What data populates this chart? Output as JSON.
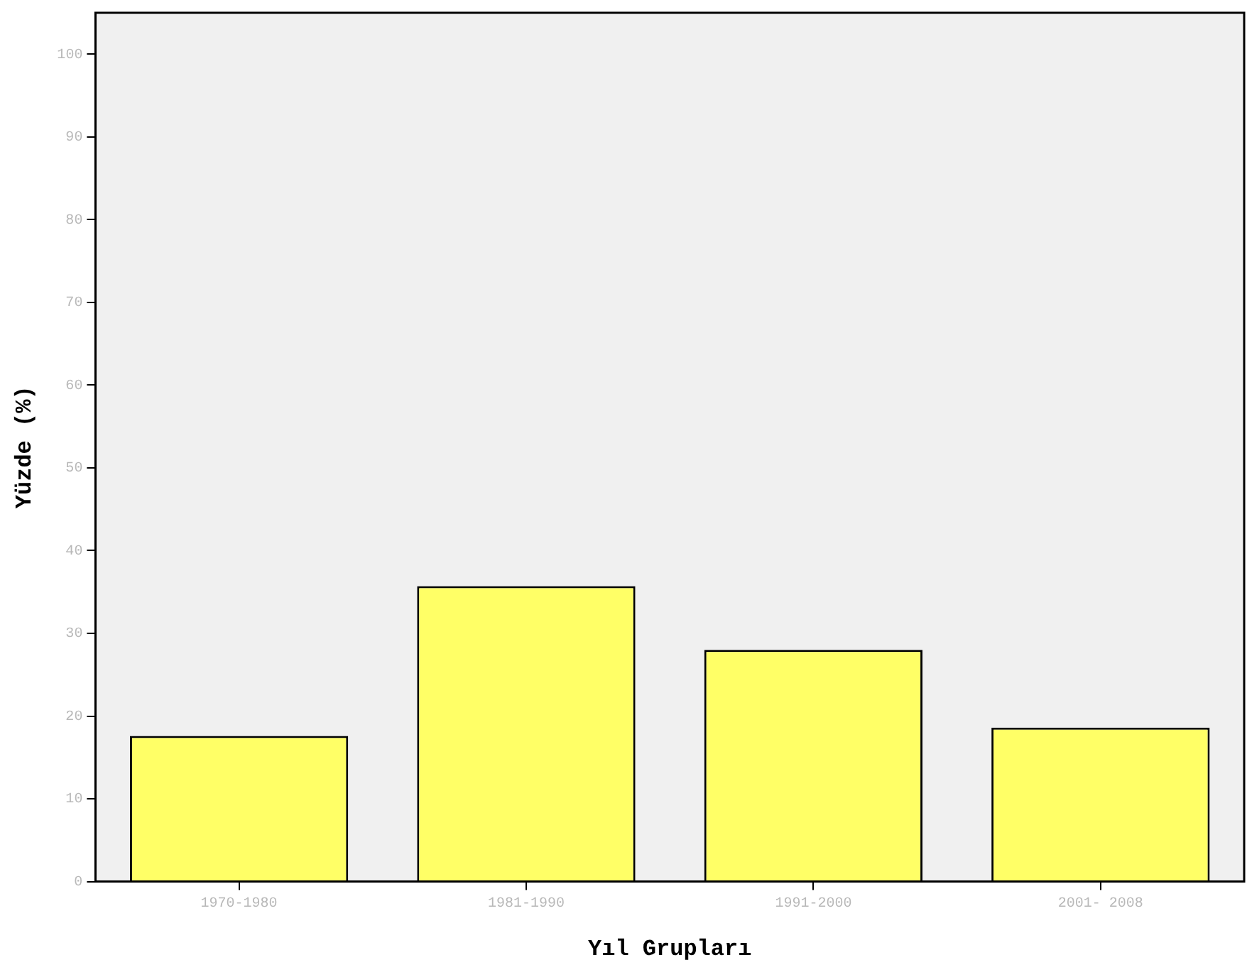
{
  "chart_data": {
    "type": "bar",
    "xlabel": "Yıl Grupları",
    "ylabel": "Yüzde (%)",
    "categories": [
      "1970-1980",
      "1981-1990",
      "1991-2000",
      "2001- 2008"
    ],
    "values": [
      17.6,
      35.7,
      28.0,
      18.6
    ],
    "color": "#ffff66",
    "ylim": [
      0,
      105
    ],
    "yticks": [
      0,
      10,
      20,
      30,
      40,
      50,
      60,
      70,
      80,
      90,
      100
    ],
    "grid": false,
    "legend": false
  }
}
